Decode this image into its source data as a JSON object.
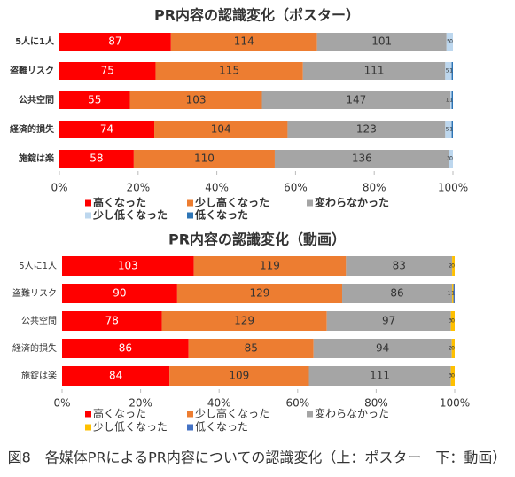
{
  "chart_data": [
    {
      "type": "bar",
      "orientation": "horizontal",
      "stacked": "percent",
      "title": "PR内容の認識変化（ポスター）",
      "categories": [
        "5人に1人",
        "盗難リスク",
        "公共空間",
        "経済的損失",
        "施錠は楽"
      ],
      "series": [
        {
          "name": "高くなった",
          "color": "#ff0000",
          "values": [
            87,
            75,
            55,
            74,
            58
          ]
        },
        {
          "name": "少し高くなった",
          "color": "#ed7d31",
          "values": [
            114,
            115,
            103,
            104,
            110
          ]
        },
        {
          "name": "変わらなかった",
          "color": "#a5a5a5",
          "values": [
            101,
            111,
            147,
            123,
            136
          ]
        },
        {
          "name": "少し低くなった",
          "color": "#bdd7ee",
          "values": [
            5,
            5,
            1,
            5,
            3
          ]
        },
        {
          "name": "低くなった",
          "color": "#2e75b6",
          "values": [
            0,
            1,
            1,
            1,
            0
          ]
        }
      ],
      "xlim": [
        0,
        100
      ],
      "xticks": [
        {
          "value": 0,
          "label": "0%"
        },
        {
          "value": 20,
          "label": "20%"
        },
        {
          "value": 40,
          "label": "40%"
        },
        {
          "value": 60,
          "label": "60%"
        },
        {
          "value": 80,
          "label": "80%"
        },
        {
          "value": 100,
          "label": "100%"
        }
      ],
      "legend": "bottom"
    },
    {
      "type": "bar",
      "orientation": "horizontal",
      "stacked": "percent",
      "title": "PR内容の認識変化（動画）",
      "categories": [
        "5人に1人",
        "盗難リスク",
        "公共空間",
        "経済的損失",
        "施錠は楽"
      ],
      "series": [
        {
          "name": "高くなった",
          "color": "#ff0000",
          "values": [
            103,
            90,
            78,
            86,
            84
          ]
        },
        {
          "name": "少し高くなった",
          "color": "#ed7d31",
          "values": [
            119,
            129,
            129,
            85,
            109
          ]
        },
        {
          "name": "変わらなかった",
          "color": "#a5a5a5",
          "values": [
            83,
            86,
            97,
            94,
            111
          ]
        },
        {
          "name": "少し低くなった",
          "color": "#ffc000",
          "values": [
            2,
            1,
            3,
            2,
            3
          ]
        },
        {
          "name": "低くなった",
          "color": "#4472c4",
          "values": [
            0,
            1,
            0,
            0,
            0
          ]
        }
      ],
      "xlim": [
        0,
        100
      ],
      "xticks": [
        {
          "value": 0,
          "label": "0%"
        },
        {
          "value": 20,
          "label": "20%"
        },
        {
          "value": 40,
          "label": "40%"
        },
        {
          "value": 60,
          "label": "60%"
        },
        {
          "value": 80,
          "label": "80%"
        },
        {
          "value": 100,
          "label": "100%"
        }
      ],
      "legend": "bottom"
    }
  ],
  "caption": "図8　各媒体PRによるPR内容についての認識変化（上：ポスター　下：動画）"
}
